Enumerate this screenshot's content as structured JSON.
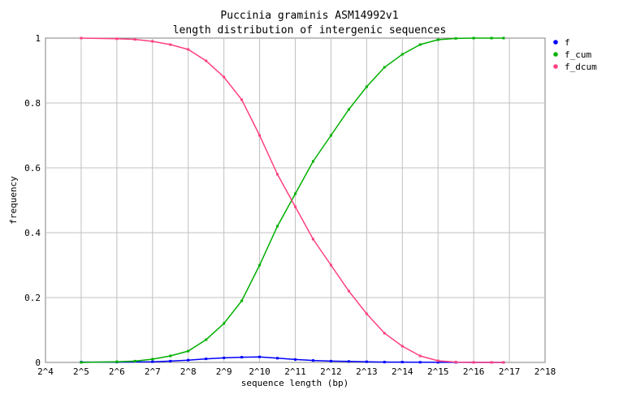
{
  "chart_data": {
    "type": "line",
    "title": "Puccinia graminis ASM14992v1",
    "subtitle": "length distribution of intergenic sequences",
    "xlabel": "sequence length (bp)",
    "ylabel": "frequency",
    "x_scale": "log2",
    "xlim": [
      16,
      262144
    ],
    "ylim": [
      0,
      1
    ],
    "x_ticks": [
      {
        "value": 16,
        "label": "2^4"
      },
      {
        "value": 32,
        "label": "2^5"
      },
      {
        "value": 64,
        "label": "2^6"
      },
      {
        "value": 128,
        "label": "2^7"
      },
      {
        "value": 256,
        "label": "2^8"
      },
      {
        "value": 512,
        "label": "2^9"
      },
      {
        "value": 1024,
        "label": "2^10"
      },
      {
        "value": 2048,
        "label": "2^11"
      },
      {
        "value": 4096,
        "label": "2^12"
      },
      {
        "value": 8192,
        "label": "2^13"
      },
      {
        "value": 16384,
        "label": "2^14"
      },
      {
        "value": 32768,
        "label": "2^15"
      },
      {
        "value": 65536,
        "label": "2^16"
      },
      {
        "value": 131072,
        "label": "2^17"
      },
      {
        "value": 262144,
        "label": "2^18"
      }
    ],
    "y_ticks": [
      {
        "value": 0,
        "label": "0"
      },
      {
        "value": 0.2,
        "label": "0.2"
      },
      {
        "value": 0.4,
        "label": "0.4"
      },
      {
        "value": 0.6,
        "label": "0.6"
      },
      {
        "value": 0.8,
        "label": "0.8"
      },
      {
        "value": 1,
        "label": "1"
      }
    ],
    "grid": true,
    "legend_position": "right",
    "series": [
      {
        "name": "f",
        "color": "#0000ff",
        "x": [
          32,
          64,
          128,
          181,
          256,
          362,
          512,
          724,
          1024,
          1448,
          2048,
          2896,
          4096,
          5793,
          8192,
          11585,
          16384,
          23170,
          32768,
          46341,
          65536,
          92682,
          117000
        ],
        "y": [
          0.001,
          0.001,
          0.002,
          0.004,
          0.007,
          0.011,
          0.014,
          0.016,
          0.017,
          0.013,
          0.009,
          0.006,
          0.004,
          0.003,
          0.002,
          0.001,
          0.001,
          0.0005,
          0.0003,
          0.0002,
          0.0001,
          5e-05,
          0.0
        ]
      },
      {
        "name": "f_cum",
        "color": "#00b000",
        "x": [
          32,
          64,
          91,
          128,
          181,
          256,
          362,
          512,
          724,
          1024,
          1448,
          2048,
          2896,
          4096,
          5793,
          8192,
          11585,
          16384,
          23170,
          32768,
          46341,
          65536,
          92682,
          117000
        ],
        "y": [
          0.0,
          0.002,
          0.004,
          0.01,
          0.02,
          0.035,
          0.07,
          0.12,
          0.19,
          0.3,
          0.42,
          0.52,
          0.62,
          0.7,
          0.78,
          0.85,
          0.91,
          0.95,
          0.98,
          0.995,
          0.999,
          1.0,
          1.0,
          1.0
        ]
      },
      {
        "name": "f_dcum",
        "color": "#ff4080",
        "x": [
          32,
          64,
          91,
          128,
          181,
          256,
          362,
          512,
          724,
          1024,
          1448,
          2048,
          2896,
          4096,
          5793,
          8192,
          11585,
          16384,
          23170,
          32768,
          46341,
          65536,
          92682,
          117000
        ],
        "y": [
          1.0,
          0.998,
          0.996,
          0.99,
          0.98,
          0.965,
          0.93,
          0.88,
          0.81,
          0.7,
          0.58,
          0.48,
          0.38,
          0.3,
          0.22,
          0.15,
          0.09,
          0.05,
          0.02,
          0.005,
          0.001,
          0.0,
          0.0,
          0.0
        ]
      }
    ]
  }
}
